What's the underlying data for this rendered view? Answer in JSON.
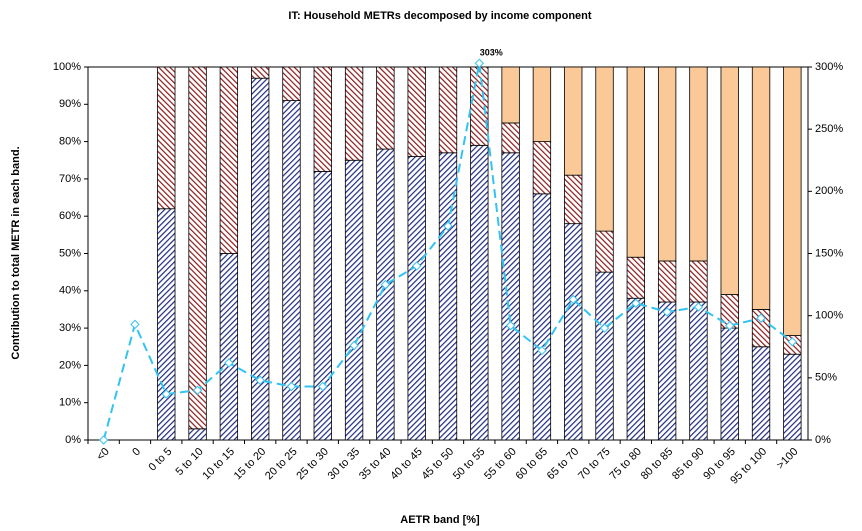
{
  "chart_data": {
    "type": "bar",
    "title": "IT: Household METRs decomposed by income component",
    "ylabel": "Contribution to total METR in each band.",
    "xlabel": "AETR band [%]",
    "categories": [
      "<0",
      "0",
      "0 to 5",
      "5 to 10",
      "10 to 15",
      "15 to 20",
      "20 to 25",
      "25 to 30",
      "30 to 35",
      "35 to 40",
      "40 to 45",
      "45 to 50",
      "50 to 55",
      "55 to 60",
      "60 to 65",
      "65 to 70",
      "70 to 75",
      "75 to 80",
      "80 to 85",
      "85 to 90",
      "90 to 95",
      "95 to 100",
      ">100"
    ],
    "series": [
      {
        "color": "#1f2a80",
        "hatch": true,
        "values": [
          null,
          null,
          62,
          3,
          50,
          97,
          91,
          72,
          75,
          78,
          76,
          77,
          79,
          77,
          66,
          58,
          45,
          38,
          37,
          37,
          30,
          25,
          23
        ]
      },
      {
        "color": "#8b1a1a",
        "hatch": true,
        "values": [
          null,
          null,
          38,
          97,
          50,
          3,
          9,
          28,
          25,
          22,
          24,
          23,
          21,
          8,
          14,
          13,
          11,
          11,
          11,
          11,
          9,
          10,
          5
        ]
      },
      {
        "color": "#fbc997",
        "hatch": false,
        "values": [
          null,
          null,
          0,
          0,
          0,
          0,
          0,
          0,
          0,
          0,
          0,
          0,
          0,
          15,
          20,
          29,
          44,
          51,
          52,
          52,
          61,
          65,
          72
        ]
      },
      {
        "type": "line",
        "axis": "y2",
        "color": "#33c3f0",
        "values": [
          0,
          93,
          37,
          40,
          62,
          48,
          43,
          43,
          76,
          125,
          140,
          172,
          303,
          92,
          72,
          113,
          90,
          110,
          103,
          107,
          92,
          98,
          79
        ],
        "value_labels": [
          null,
          null,
          null,
          null,
          null,
          null,
          null,
          null,
          null,
          null,
          null,
          null,
          "303%",
          null,
          null,
          null,
          null,
          null,
          null,
          null,
          null,
          null,
          null
        ]
      }
    ],
    "ylim": [
      0,
      100
    ],
    "yticks": [
      {
        "value": 0,
        "label": "0%"
      },
      {
        "value": 10,
        "label": "10%"
      },
      {
        "value": 20,
        "label": "20%"
      },
      {
        "value": 30,
        "label": "30%"
      },
      {
        "value": 40,
        "label": "40%"
      },
      {
        "value": 50,
        "label": "50%"
      },
      {
        "value": 60,
        "label": "60%"
      },
      {
        "value": 70,
        "label": "70%"
      },
      {
        "value": 80,
        "label": "80%"
      },
      {
        "value": 90,
        "label": "90%"
      },
      {
        "value": 100,
        "label": "100%"
      }
    ],
    "y2lim": [
      0,
      300
    ],
    "y2ticks": [
      {
        "value": 0,
        "label": "0%"
      },
      {
        "value": 50,
        "label": "50%"
      },
      {
        "value": 100,
        "label": "100%"
      },
      {
        "value": 150,
        "label": "150%"
      },
      {
        "value": 200,
        "label": "200%"
      },
      {
        "value": 250,
        "label": "250%"
      },
      {
        "value": 300,
        "label": "300%"
      }
    ]
  }
}
